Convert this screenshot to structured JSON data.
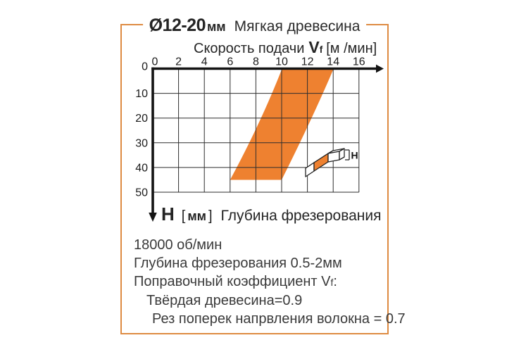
{
  "header": {
    "diameter": "Ø12-20",
    "diameter_unit": "мм",
    "material": "Мягкая древесина"
  },
  "chart_data": {
    "type": "area",
    "title": "Скорость подачи Vf [м /мин]",
    "xlabel": {
      "prefix": "Скорость подачи",
      "symbol": "V",
      "symbol_sub": "f",
      "unit": "[м /мин]"
    },
    "ylabel": {
      "symbol": "H",
      "bracket_l": "[",
      "unit": "мм",
      "bracket_r": "]",
      "text": "Глубина фрезерования"
    },
    "xlim": [
      0,
      16
    ],
    "ylim": [
      0,
      50
    ],
    "x_ticks": [
      0,
      2,
      4,
      6,
      8,
      10,
      12,
      14,
      16
    ],
    "y_ticks": [
      0,
      10,
      20,
      30,
      40,
      50
    ],
    "y_axis_direction": "down",
    "grid": true,
    "band": {
      "fill": "#ee8130",
      "points": [
        {
          "vf": 10,
          "h": 0
        },
        {
          "vf": 14,
          "h": 0
        },
        {
          "vf": 10,
          "h": 45
        },
        {
          "vf": 6,
          "h": 45
        }
      ]
    }
  },
  "workpiece_icon": {
    "label": "H"
  },
  "notes": {
    "rpm": "18000 об/мин",
    "milling_depth": "Глубина фрезерования 0.5-2мм",
    "coefficient": {
      "prefix": "Поправочный коэффициент ",
      "symbol": "V",
      "symbol_sub": "f",
      "colon": ":"
    },
    "hardwood": "Твёрдая древесина=0.9",
    "cross_grain": "Рез поперек напрвления волокна = 0.7"
  },
  "colors": {
    "band": "#ee8130",
    "frame_border": "#de8b42",
    "grid": "#2e2e2e",
    "axis": "#141414",
    "notes_text": "#3a3a3a"
  }
}
